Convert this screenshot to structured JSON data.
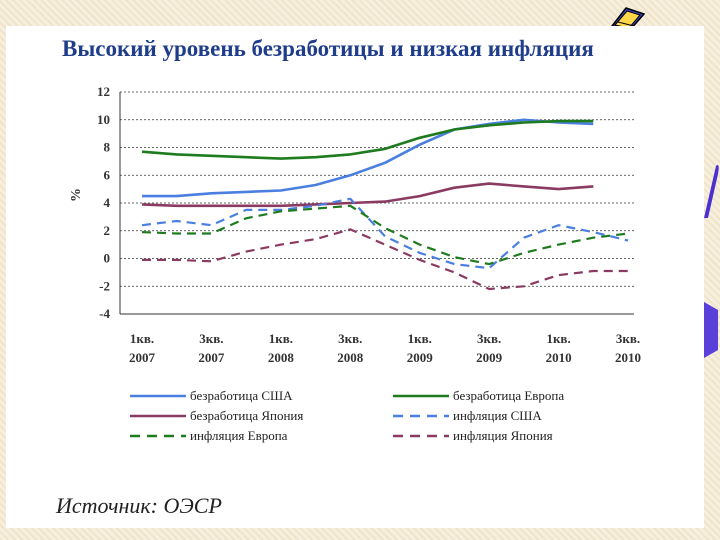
{
  "title": "Высокий уровень безработицы и низкая инфляция",
  "source": "Источник: ОЭСР",
  "chart_data": {
    "type": "line",
    "title": "Высокий уровень безработицы и низкая инфляция",
    "xlabel": "",
    "ylabel": "%",
    "ylim": [
      -4,
      12
    ],
    "yticks": [
      "12",
      "10",
      "8",
      "6",
      "4",
      "2",
      "0",
      "-2",
      "-4"
    ],
    "grid": true,
    "legend_position": "bottom",
    "x_ticks": [
      {
        "q": "1кв.",
        "year": "2007"
      },
      {
        "q": "3кв.",
        "year": "2007"
      },
      {
        "q": "1кв.",
        "year": "2008"
      },
      {
        "q": "3кв.",
        "year": "2008"
      },
      {
        "q": "1кв.",
        "year": "2009"
      },
      {
        "q": "3кв.",
        "year": "2009"
      },
      {
        "q": "1кв.",
        "year": "2010"
      },
      {
        "q": "3кв.",
        "year": "2010"
      }
    ],
    "x": [
      "1кв. 2007",
      "2кв. 2007",
      "3кв. 2007",
      "4кв. 2007",
      "1кв. 2008",
      "2кв. 2008",
      "3кв. 2008",
      "4кв. 2008",
      "1кв. 2009",
      "2кв. 2009",
      "3кв. 2009",
      "4кв. 2009",
      "1кв. 2010",
      "2кв. 2010",
      "3кв. 2010"
    ],
    "series": [
      {
        "name": "безработица США",
        "color": "#4a7fe0",
        "dash": false,
        "values": [
          4.5,
          4.5,
          4.7,
          4.8,
          4.9,
          5.3,
          6.0,
          6.9,
          8.2,
          9.3,
          9.7,
          10.0,
          9.8,
          9.7,
          null
        ]
      },
      {
        "name": "безработица Европа",
        "color": "#1e7b1e",
        "dash": false,
        "values": [
          7.7,
          7.5,
          7.4,
          7.3,
          7.2,
          7.3,
          7.5,
          7.9,
          8.7,
          9.3,
          9.6,
          9.8,
          9.9,
          9.9,
          null
        ]
      },
      {
        "name": "безработица Япония",
        "color": "#8b3a62",
        "dash": false,
        "values": [
          3.9,
          3.8,
          3.8,
          3.8,
          3.8,
          3.9,
          4.0,
          4.1,
          4.5,
          5.1,
          5.4,
          5.2,
          5.0,
          5.2,
          null
        ]
      },
      {
        "name": "инфляция США",
        "color": "#4a7fe0",
        "dash": true,
        "values": [
          2.4,
          2.7,
          2.4,
          3.5,
          3.5,
          3.8,
          4.3,
          1.6,
          0.4,
          -0.4,
          -0.7,
          1.5,
          2.4,
          1.9,
          1.3
        ]
      },
      {
        "name": "инфляция Европа",
        "color": "#1e7b1e",
        "dash": true,
        "values": [
          1.9,
          1.8,
          1.8,
          2.9,
          3.4,
          3.6,
          3.8,
          2.2,
          1.0,
          0.1,
          -0.4,
          0.4,
          1.0,
          1.5,
          1.8
        ]
      },
      {
        "name": "инфляция Япония",
        "color": "#8b3a62",
        "dash": true,
        "values": [
          -0.1,
          -0.1,
          -0.2,
          0.5,
          1.0,
          1.4,
          2.1,
          1.0,
          -0.1,
          -1.0,
          -2.2,
          -2.0,
          -1.2,
          -0.9,
          -0.9
        ]
      }
    ]
  },
  "decor": {
    "book_icon": "book-icon",
    "blue_shape_color": "#4b2fd0"
  }
}
